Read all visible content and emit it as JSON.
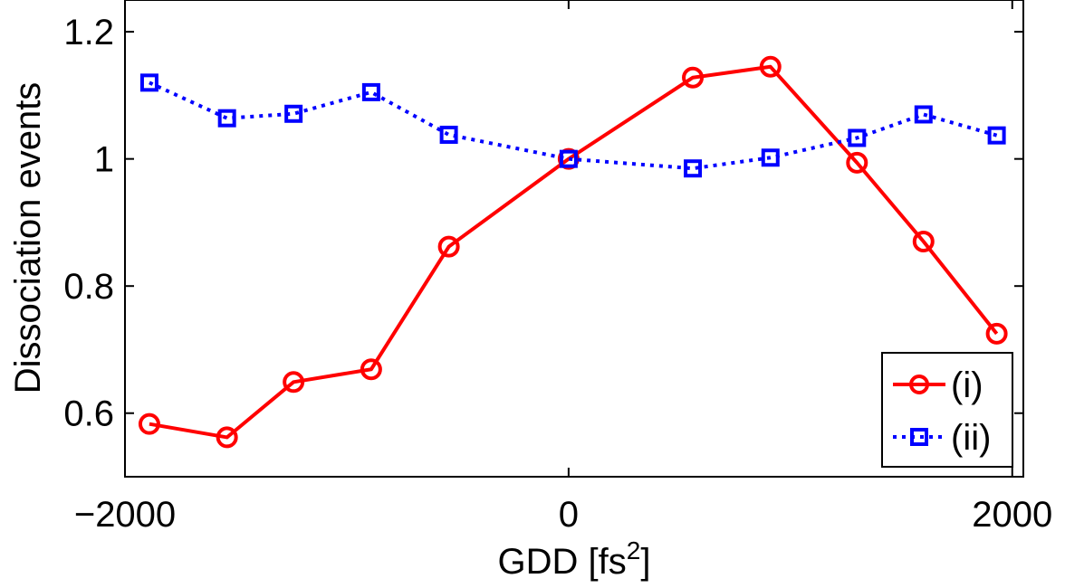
{
  "chart_data": {
    "type": "line",
    "title": "",
    "xlabel": "GDD [fs",
    "xlabel_superscript": "2",
    "xlabel_suffix": "]",
    "ylabel": "Dissociation events",
    "xlim": [
      -2000,
      2050
    ],
    "ylim": [
      0.5,
      1.25
    ],
    "xticks": [
      -2000,
      0,
      2000
    ],
    "xtick_labels": [
      "−2000",
      "0",
      "2000"
    ],
    "yticks": [
      0.6,
      0.8,
      1.0,
      1.2
    ],
    "ytick_labels": [
      "0.6",
      "0.8",
      "1",
      "1.2"
    ],
    "grid": false,
    "legend_position": "bottom-right",
    "series": [
      {
        "name": "(i)",
        "color": "#ff0000",
        "line_style": "solid",
        "marker": "circle",
        "x": [
          -1890,
          -1540,
          -1240,
          -890,
          -540,
          0,
          560,
          910,
          1300,
          1600,
          1930
        ],
        "y": [
          0.583,
          0.562,
          0.649,
          0.669,
          0.862,
          1.0,
          1.128,
          1.145,
          0.994,
          0.87,
          0.725
        ]
      },
      {
        "name": "(ii)",
        "color": "#0000ff",
        "line_style": "dotted",
        "marker": "square",
        "x": [
          -1890,
          -1540,
          -1240,
          -890,
          -540,
          0,
          560,
          910,
          1300,
          1600,
          1930
        ],
        "y": [
          1.12,
          1.064,
          1.071,
          1.105,
          1.038,
          1.0,
          0.985,
          1.002,
          1.033,
          1.07,
          1.037
        ]
      }
    ]
  }
}
